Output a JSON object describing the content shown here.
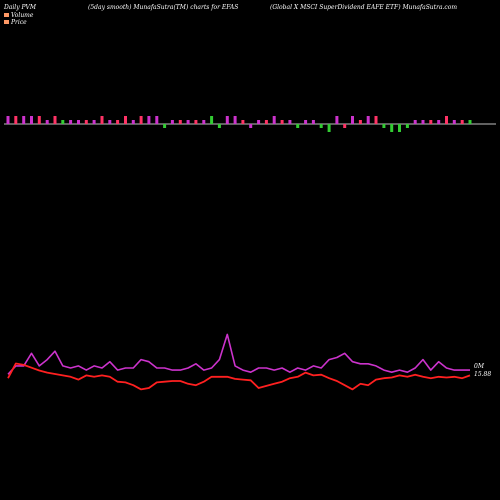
{
  "header": {
    "left": "Daily PVM",
    "mid": "(5day smooth) MunafaSutra(TM) charts for EFAS",
    "right": "(Global X  MSCI SuperDividend EAFE ETF) MunafaSutra.com"
  },
  "legend": {
    "volume": "Volume",
    "price": "Price"
  },
  "end_labels": {
    "volume": "0M",
    "price": "15.88"
  },
  "colors": {
    "background": "#000000",
    "volume_line": "#cc33cc",
    "price_line": "#ff2020",
    "bar_up": "#cc33cc",
    "bar_down": "#ff3366",
    "bar_green": "#33cc33",
    "axis_line": "#ffffff",
    "legend_volume": "#ff9966",
    "legend_price": "#ff9966"
  },
  "chart_data": {
    "type": "line",
    "n_points": 60,
    "series": [
      {
        "name": "Volume",
        "values": [
          7,
          11,
          11,
          17,
          11,
          14,
          18,
          11,
          10,
          11,
          9,
          11,
          10,
          13,
          9,
          10,
          10,
          14,
          13,
          10,
          10,
          9,
          9,
          10,
          12,
          9,
          10,
          14,
          26,
          11,
          9,
          8,
          10,
          10,
          9,
          10,
          8,
          10,
          9,
          11,
          10,
          14,
          15,
          17,
          13,
          12,
          12,
          11,
          9,
          8,
          9,
          8,
          10,
          14,
          9,
          13,
          10,
          9,
          9,
          9
        ]
      },
      {
        "name": "Price",
        "values": [
          15.84,
          16.05,
          16.03,
          15.99,
          15.95,
          15.92,
          15.9,
          15.88,
          15.86,
          15.82,
          15.88,
          15.86,
          15.88,
          15.86,
          15.79,
          15.78,
          15.74,
          15.68,
          15.7,
          15.78,
          15.79,
          15.8,
          15.8,
          15.76,
          15.74,
          15.79,
          15.86,
          15.86,
          15.86,
          15.83,
          15.82,
          15.81,
          15.7,
          15.73,
          15.76,
          15.79,
          15.84,
          15.86,
          15.92,
          15.88,
          15.89,
          15.84,
          15.8,
          15.74,
          15.68,
          15.76,
          15.74,
          15.82,
          15.84,
          15.85,
          15.88,
          15.86,
          15.89,
          15.86,
          15.84,
          15.86,
          15.85,
          15.86,
          15.84,
          15.88
        ]
      }
    ],
    "volume_bars": [
      2,
      2,
      2,
      2,
      2,
      1,
      2,
      1,
      1,
      1,
      1,
      1,
      2,
      1,
      1,
      2,
      1,
      2,
      2,
      2,
      -1,
      1,
      1,
      1,
      1,
      1,
      2,
      -1,
      2,
      2,
      1,
      -1,
      1,
      1,
      2,
      1,
      1,
      -1,
      1,
      1,
      -1,
      -2,
      2,
      -1,
      2,
      1,
      2,
      2,
      -1,
      -2,
      -2,
      -1,
      1,
      1,
      1,
      1,
      2,
      1,
      1,
      1
    ],
    "bar_colors": [
      "up",
      "down",
      "up",
      "up",
      "down",
      "up",
      "down",
      "green",
      "up",
      "up",
      "down",
      "up",
      "down",
      "up",
      "down",
      "down",
      "up",
      "down",
      "up",
      "up",
      "green",
      "up",
      "down",
      "up",
      "down",
      "up",
      "green",
      "green",
      "up",
      "up",
      "down",
      "up",
      "up",
      "down",
      "up",
      "down",
      "up",
      "green",
      "up",
      "up",
      "green",
      "green",
      "up",
      "down",
      "up",
      "down",
      "up",
      "down",
      "green",
      "green",
      "green",
      "green",
      "up",
      "up",
      "down",
      "up",
      "down",
      "up",
      "down",
      "green"
    ]
  }
}
